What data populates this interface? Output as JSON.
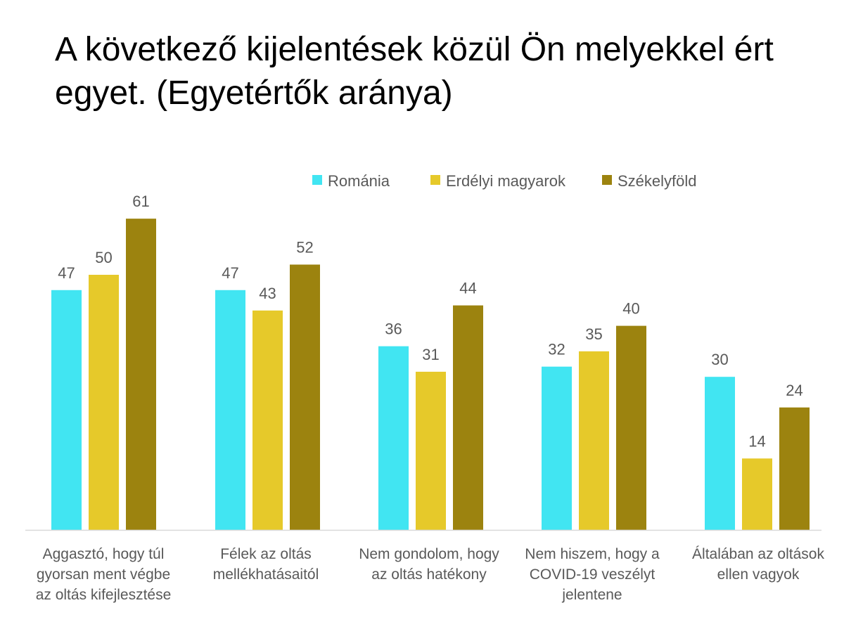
{
  "chart_data": {
    "type": "bar",
    "title": "A következő kijelentések közül Ön melyekkel ért egyet. (Egyetértők aránya)",
    "categories": [
      [
        "Aggasztó, hogy túl",
        "gyorsan ment végbe",
        "az oltás kifejlesztése"
      ],
      [
        "Félek az oltás",
        "mellékhatásaitól"
      ],
      [
        "Nem gondolom, hogy",
        "az oltás hatékony"
      ],
      [
        "Nem hiszem, hogy a",
        "COVID-19 veszélyt",
        "jelentene"
      ],
      [
        "Általában az oltások",
        "ellen vagyok"
      ]
    ],
    "series": [
      {
        "name": "Románia",
        "color": "#41E5F2",
        "values": [
          47,
          47,
          36,
          32,
          30
        ]
      },
      {
        "name": "Erdélyi magyarok",
        "color": "#E6C92A",
        "values": [
          50,
          43,
          31,
          35,
          14
        ]
      },
      {
        "name": "Székelyföld",
        "color": "#9C830F",
        "values": [
          61,
          52,
          44,
          40,
          24
        ]
      }
    ],
    "ylim": [
      0,
      66
    ],
    "grid": false,
    "legend": "top-right",
    "data_labels": true
  }
}
